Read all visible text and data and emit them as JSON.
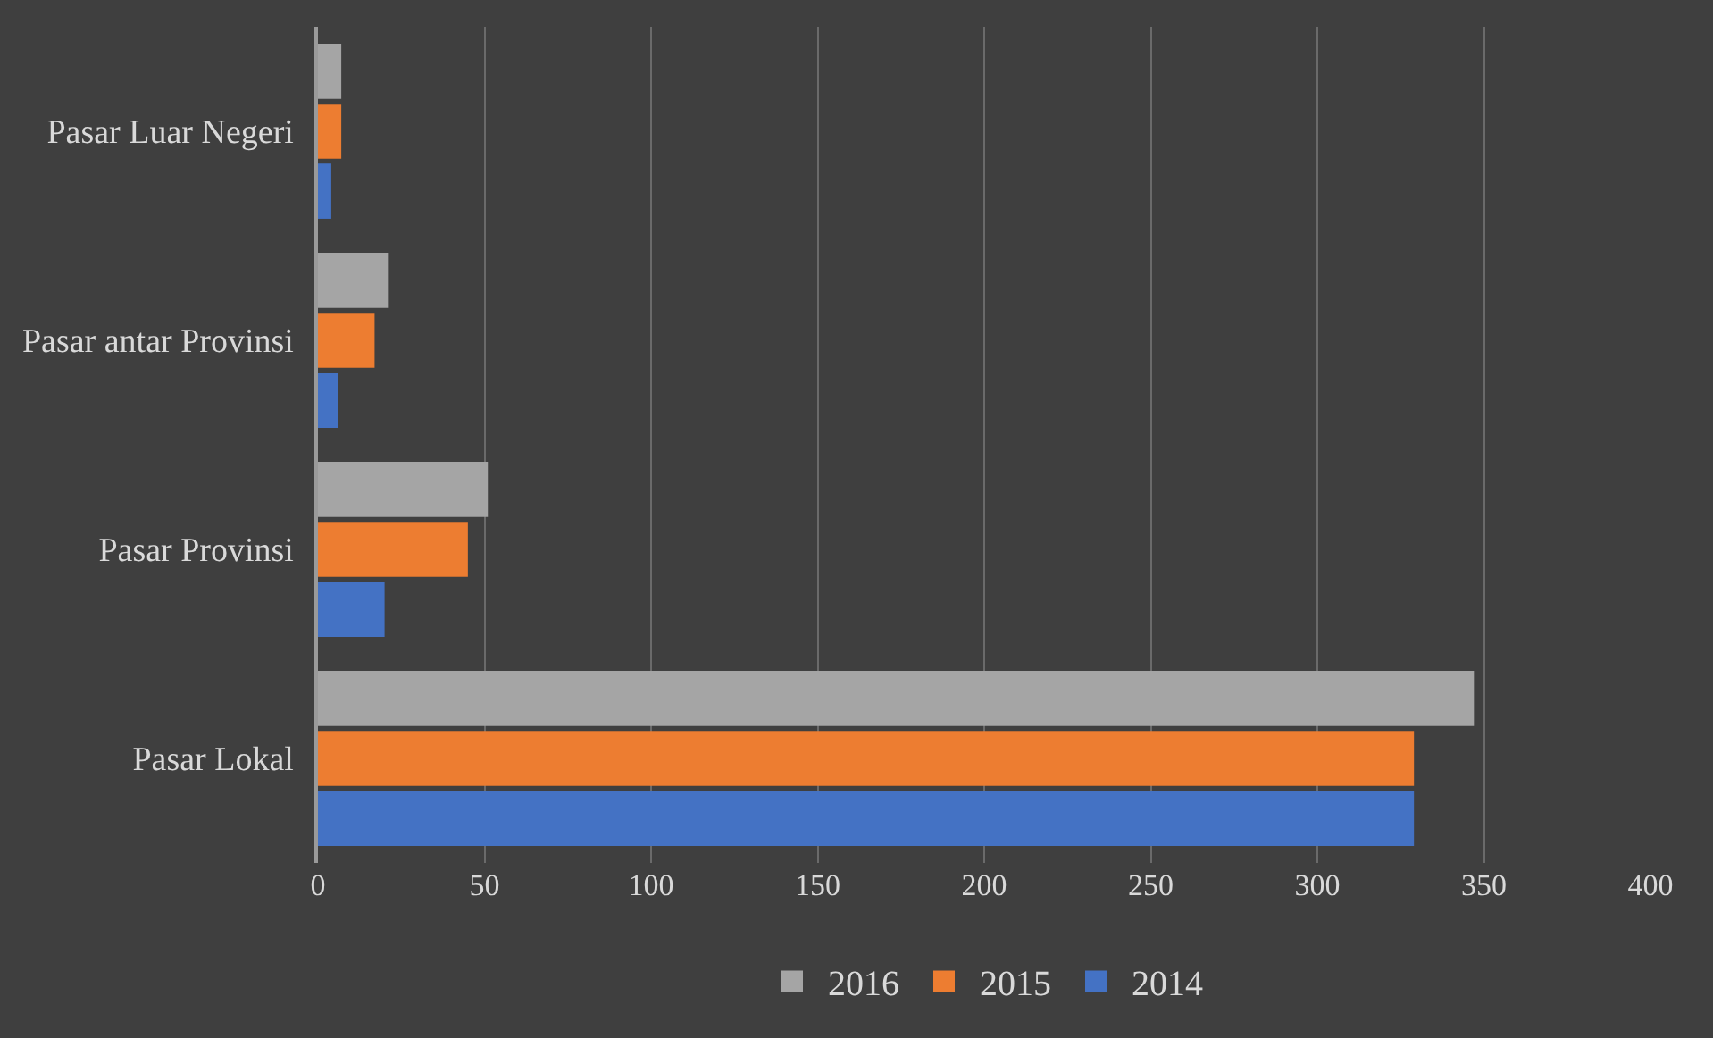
{
  "chart_data": {
    "type": "bar",
    "orientation": "horizontal",
    "categories": [
      "Pasar Luar Negeri",
      "Pasar antar Provinsi",
      "Pasar Provinsi",
      "Pasar Lokal"
    ],
    "series": [
      {
        "name": "2016",
        "color": "#a5a5a5",
        "values": [
          7,
          21,
          51,
          347
        ]
      },
      {
        "name": "2015",
        "color": "#ed7d31",
        "values": [
          7,
          17,
          45,
          329
        ]
      },
      {
        "name": "2014",
        "color": "#4472c4",
        "values": [
          4,
          6,
          20,
          329
        ]
      }
    ],
    "xlim": [
      0,
      400
    ],
    "xticks": [
      0,
      50,
      100,
      150,
      200,
      250,
      300,
      350,
      400
    ],
    "grid": "x",
    "legend": "bottom"
  }
}
